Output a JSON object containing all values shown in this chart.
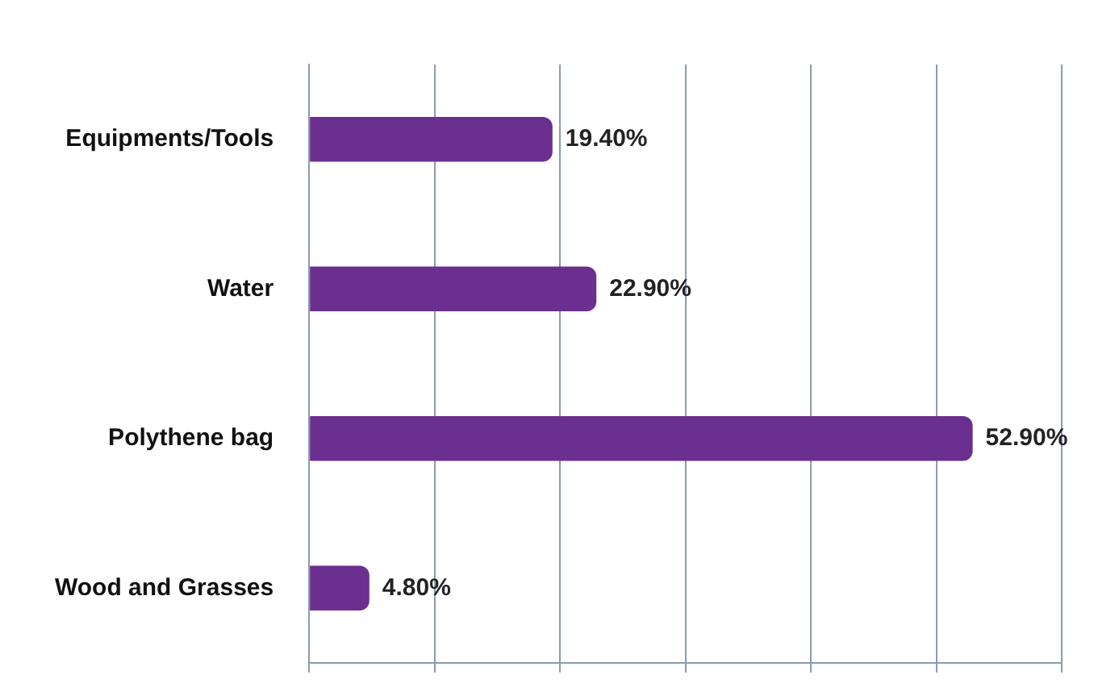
{
  "chart_data": {
    "type": "bar",
    "orientation": "horizontal",
    "categories": [
      "Equipments/Tools",
      "Water",
      "Polythene bag",
      "Wood and Grasses"
    ],
    "values": [
      19.4,
      22.9,
      52.9,
      4.8
    ],
    "value_labels": [
      "19.40%",
      "22.90%",
      "52.90%",
      "4.80%"
    ],
    "color": "#6b2f8f",
    "xlim": [
      0,
      60
    ],
    "xticks": [
      {
        "value": 0,
        "label": null
      },
      {
        "value": 10,
        "label": null
      },
      {
        "value": 20,
        "label": null
      },
      {
        "value": 30,
        "label": null
      },
      {
        "value": 40,
        "label": null
      },
      {
        "value": 50,
        "label": null
      },
      {
        "value": 60,
        "label": null
      }
    ],
    "tick_labels": "y",
    "grid": "x",
    "legend": false
  }
}
